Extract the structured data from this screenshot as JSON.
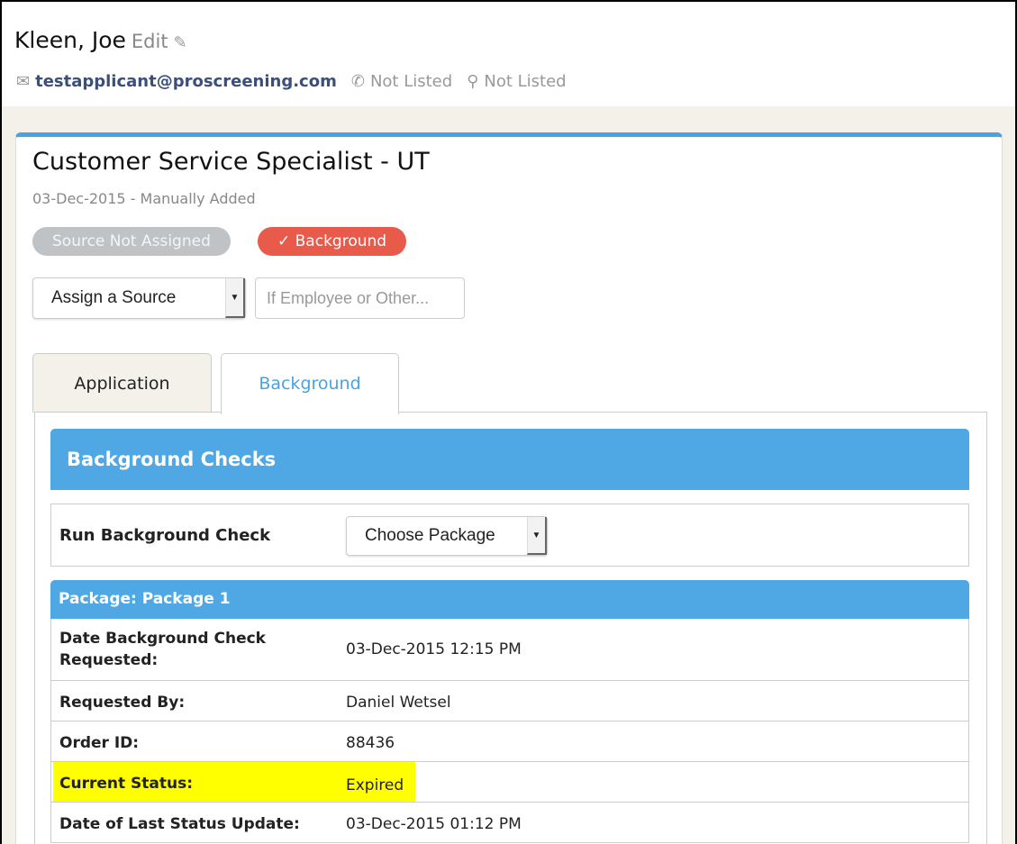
{
  "applicant": {
    "name": "Kleen, Joe",
    "edit_label": "Edit",
    "email": "testapplicant@proscreening.com",
    "phone": "Not Listed",
    "location": "Not Listed"
  },
  "job": {
    "title": "Customer Service Specialist - UT",
    "subtitle": "03-Dec-2015 - Manually Added",
    "badges": {
      "source": "Source Not Assigned",
      "background": "✓ Background"
    },
    "source_select": "Assign a Source",
    "source_input_placeholder": "If Employee or Other..."
  },
  "tabs": [
    {
      "label": "Application",
      "active": false
    },
    {
      "label": "Background",
      "active": true
    }
  ],
  "background": {
    "header": "Background Checks",
    "run_label": "Run Background Check",
    "package_select": "Choose Package",
    "package_header": "Package: Package 1",
    "rows": [
      {
        "label": "Date Background Check Requested:",
        "value": "03-Dec-2015 12:15 PM"
      },
      {
        "label": "Requested By:",
        "value": "Daniel Wetsel"
      },
      {
        "label": "Order ID:",
        "value": "88436"
      },
      {
        "label": "Current Status:",
        "value": "Expired",
        "highlighted": true
      },
      {
        "label": "Date of Last Status Update:",
        "value": "03-Dec-2015 01:12 PM"
      }
    ]
  },
  "colors": {
    "accent": "#4fa8e3",
    "badge_red": "#e85a4a",
    "highlight": "#ffff00"
  }
}
